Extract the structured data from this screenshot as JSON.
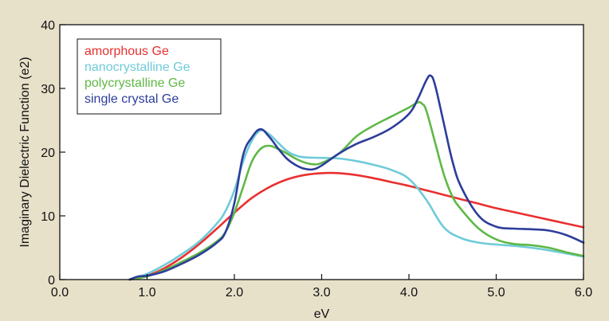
{
  "chart_data": {
    "type": "line",
    "title": "",
    "xlabel": "eV",
    "ylabel": "Imaginary Dielectric Function (e2)",
    "xlim": [
      0.0,
      6.0
    ],
    "ylim": [
      0,
      40
    ],
    "x_ticks": [
      "0.0",
      "1.0",
      "2.0",
      "3.0",
      "4.0",
      "5.0",
      "6.0"
    ],
    "y_ticks": [
      "0",
      "10",
      "20",
      "30",
      "40"
    ],
    "grid": false,
    "legend_position": "top-left",
    "series": [
      {
        "name": "amorphous Ge",
        "color": "#e8302f",
        "x": [
          0.8,
          1.0,
          1.2,
          1.4,
          1.6,
          1.8,
          2.0,
          2.2,
          2.4,
          2.6,
          2.8,
          3.0,
          3.2,
          3.4,
          3.6,
          3.8,
          4.0,
          4.2,
          4.4,
          4.6,
          4.8,
          5.0,
          5.2,
          5.4,
          5.6,
          5.8,
          6.0
        ],
        "y": [
          0.0,
          0.6,
          1.8,
          3.5,
          5.6,
          8.0,
          10.5,
          12.8,
          14.5,
          15.7,
          16.4,
          16.7,
          16.7,
          16.4,
          15.9,
          15.3,
          14.7,
          14.0,
          13.3,
          12.6,
          11.9,
          11.2,
          10.6,
          10.0,
          9.4,
          8.8,
          8.2
        ]
      },
      {
        "name": "nanocrystalline Ge",
        "color": "#6fcbd9",
        "x": [
          0.8,
          1.0,
          1.2,
          1.4,
          1.6,
          1.8,
          1.9,
          2.0,
          2.1,
          2.2,
          2.3,
          2.4,
          2.5,
          2.6,
          2.7,
          2.8,
          3.0,
          3.2,
          3.4,
          3.6,
          3.8,
          4.0,
          4.2,
          4.4,
          4.6,
          4.8,
          5.0,
          5.2,
          5.4,
          5.6,
          5.8,
          6.0
        ],
        "y": [
          0.0,
          0.9,
          2.3,
          4.0,
          6.0,
          8.8,
          10.8,
          14.0,
          18.5,
          21.8,
          23.4,
          22.8,
          21.5,
          20.2,
          19.5,
          19.2,
          19.1,
          19.0,
          18.6,
          18.0,
          17.2,
          15.8,
          12.5,
          8.2,
          6.5,
          5.8,
          5.5,
          5.3,
          5.0,
          4.6,
          4.1,
          3.6
        ]
      },
      {
        "name": "polycrystalline Ge",
        "color": "#5fb846",
        "x": [
          0.8,
          1.0,
          1.2,
          1.4,
          1.6,
          1.8,
          1.9,
          2.0,
          2.1,
          2.2,
          2.3,
          2.4,
          2.5,
          2.6,
          2.7,
          2.8,
          2.9,
          3.0,
          3.2,
          3.4,
          3.6,
          3.8,
          4.0,
          4.1,
          4.15,
          4.2,
          4.3,
          4.4,
          4.5,
          4.6,
          4.8,
          5.0,
          5.2,
          5.4,
          5.6,
          5.8,
          6.0
        ],
        "y": [
          0.0,
          0.5,
          1.5,
          2.8,
          4.2,
          6.0,
          7.5,
          10.5,
          14.5,
          18.5,
          20.5,
          21.0,
          20.5,
          19.8,
          19.0,
          18.4,
          18.1,
          18.3,
          19.8,
          22.5,
          24.2,
          25.6,
          27.0,
          27.8,
          27.6,
          26.5,
          21.5,
          16.5,
          13.0,
          11.0,
          8.0,
          6.3,
          5.6,
          5.4,
          5.0,
          4.3,
          3.7
        ]
      },
      {
        "name": "single crystal Ge",
        "color": "#2d3d9a",
        "x": [
          0.8,
          0.9,
          1.0,
          1.2,
          1.4,
          1.6,
          1.8,
          1.9,
          2.0,
          2.1,
          2.2,
          2.3,
          2.4,
          2.5,
          2.6,
          2.7,
          2.8,
          2.9,
          3.0,
          3.2,
          3.4,
          3.6,
          3.8,
          4.0,
          4.1,
          4.2,
          4.25,
          4.3,
          4.4,
          4.5,
          4.6,
          4.8,
          5.0,
          5.2,
          5.4,
          5.6,
          5.8,
          6.0
        ],
        "y": [
          0.0,
          0.5,
          0.6,
          1.3,
          2.5,
          3.9,
          5.8,
          7.5,
          12.0,
          19.5,
          22.3,
          23.6,
          22.4,
          20.6,
          19.0,
          18.0,
          17.4,
          17.3,
          17.9,
          19.8,
          21.3,
          22.4,
          23.8,
          26.0,
          28.3,
          31.3,
          32.0,
          30.5,
          24.5,
          18.5,
          14.5,
          10.0,
          8.3,
          8.0,
          7.9,
          7.7,
          7.0,
          5.8
        ]
      }
    ]
  }
}
